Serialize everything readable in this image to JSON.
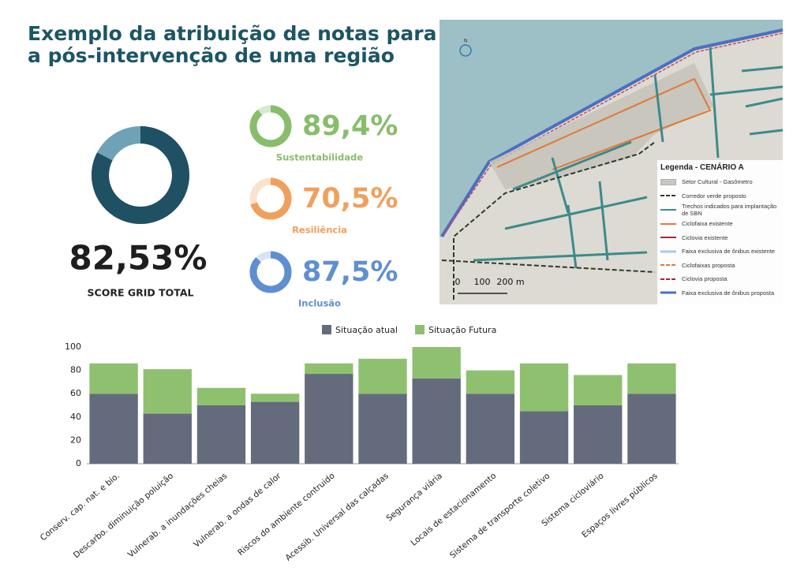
{
  "header": {
    "title": [
      "Exemplo da atribuição de notas para",
      "a pós-intervenção de uma região"
    ]
  },
  "chart_data": [
    {
      "type": "donut",
      "title": "SCORE GRID TOTAL",
      "values": [
        82.53
      ],
      "value_labels": [
        "82,53%"
      ],
      "ylim": [
        0,
        100
      ],
      "color": "#1f5064",
      "track_color": "#6fa2b6"
    },
    {
      "type": "donut",
      "title": "Sustentabilidade",
      "values": [
        89.4
      ],
      "value_labels": [
        "89,4%"
      ],
      "ylim": [
        0,
        100
      ],
      "color": "#88bd6c",
      "track_color": "#d8eacd"
    },
    {
      "type": "donut",
      "title": "Resiliência",
      "values": [
        70.5
      ],
      "value_labels": [
        "70,5%"
      ],
      "ylim": [
        0,
        100
      ],
      "color": "#f0a05c",
      "track_color": "#fbe2cd"
    },
    {
      "type": "donut",
      "title": "Inclusão",
      "values": [
        87.5
      ],
      "value_labels": [
        "87,5%"
      ],
      "ylim": [
        0,
        100
      ],
      "color": "#5f8fd0",
      "track_color": "#d9e3f3"
    },
    {
      "type": "bar",
      "stacked": true,
      "categories": [
        "Conserv. cap. nat. e bio.",
        "Descarbo. diminuição poluição",
        "Vulnerab. a inundações cheias",
        "Vulnerab. a ondas de calor",
        "Riscos do ambiente contruido",
        "Acessib. Universal das calçadas",
        "Segurança viária",
        "Locais de estacionamento",
        "Sistema de transporte coletivo",
        "Sistema cicloviário",
        "Espaços livres públicos"
      ],
      "series": [
        {
          "name": "Situação atual",
          "color": "#646b7d",
          "values": [
            60,
            43,
            50,
            53,
            77,
            60,
            73,
            60,
            45,
            50,
            60
          ]
        },
        {
          "name": "Situação Futura",
          "color": "#8fc070",
          "values": [
            26,
            38,
            15,
            7,
            9,
            30,
            27,
            20,
            41,
            26,
            26
          ]
        }
      ],
      "ylim": [
        0,
        100
      ],
      "yticks": [
        0,
        20,
        40,
        60,
        80,
        100
      ],
      "grid": false,
      "legend": "top"
    }
  ],
  "map": {
    "north": "N",
    "scale_labels": [
      "0",
      "100",
      "200 m"
    ],
    "legend": {
      "title": "Legenda - CENÁRIO A",
      "items": [
        "Setor Cultural - Gasômetro",
        "Corredor verde proposto",
        "Trechos indicados para implantação de SBN",
        "Ciclofaixa existente",
        "Ciclovia existente",
        "Faixa exclusiva de ônibus existente",
        "Ciclofaixas proposta",
        "Ciclovia proposta",
        "Faixa exclusiva de ônibus proposta"
      ]
    }
  }
}
